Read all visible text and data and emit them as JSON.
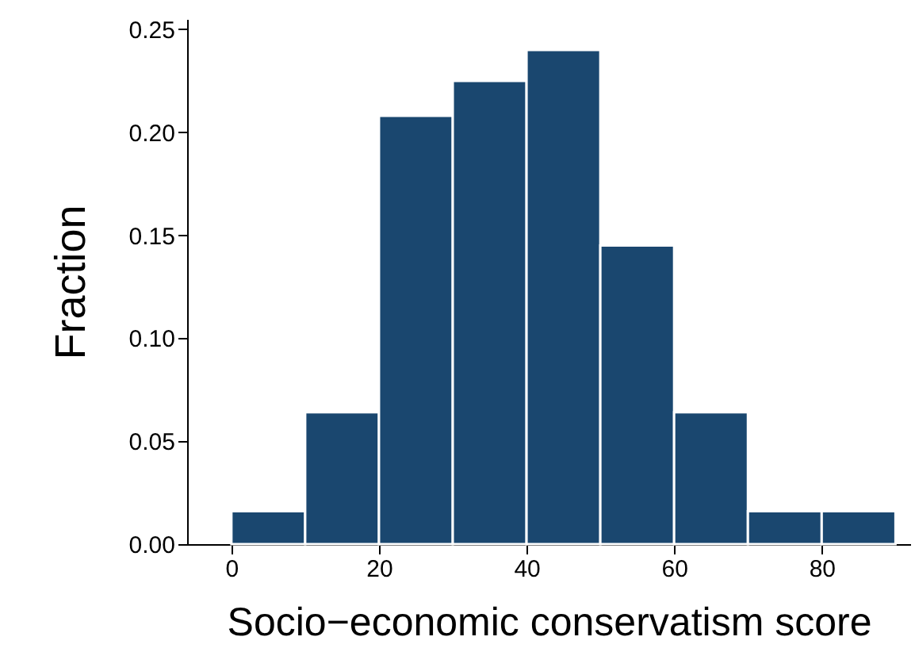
{
  "chart_data": {
    "type": "histogram",
    "xlabel": "Socio−economic conservatism score",
    "ylabel": "Fraction",
    "color": "#1a476f",
    "bins": [
      0,
      10,
      20,
      30,
      40,
      50,
      60,
      70,
      80,
      90
    ],
    "values": [
      0.016,
      0.064,
      0.208,
      0.225,
      0.24,
      0.145,
      0.064,
      0.016,
      0.016
    ],
    "xlim": [
      -6,
      92
    ],
    "xticks": [
      0,
      20,
      40,
      60,
      80
    ],
    "ylim": [
      0,
      0.255
    ],
    "yticks": [
      {
        "value": 0,
        "label": "0.00"
      },
      {
        "value": 0.05,
        "label": "0.05"
      },
      {
        "value": 0.1,
        "label": "0.10"
      },
      {
        "value": 0.15,
        "label": "0.15"
      },
      {
        "value": 0.2,
        "label": "0.20"
      },
      {
        "value": 0.25,
        "label": "0.25"
      }
    ],
    "grid": false
  }
}
